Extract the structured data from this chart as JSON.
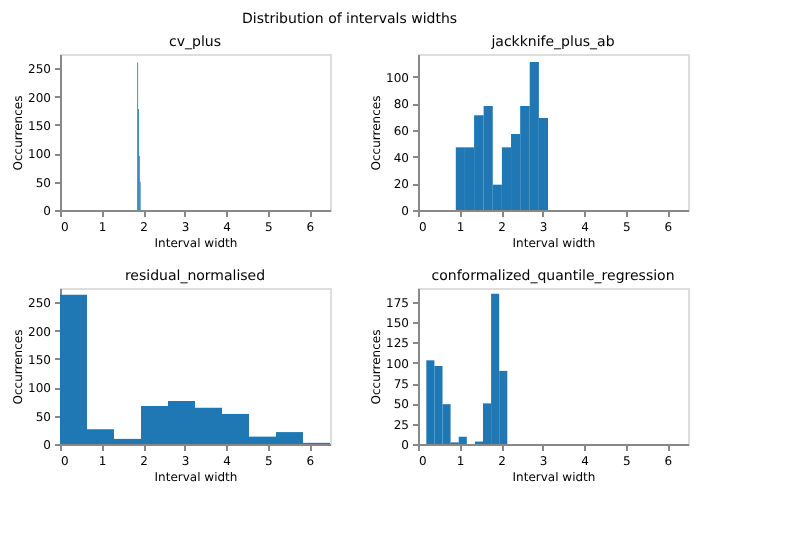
{
  "chart_data": [
    {
      "type": "histogram",
      "title": "cv_plus",
      "xlabel": "Interval width",
      "ylabel": "Occurrences",
      "annotations": [
        "Distribution of intervals widths"
      ],
      "color": "#1f77b4",
      "bins": [
        1.86,
        1.88,
        1.9,
        1.92,
        1.94,
        1.96
      ],
      "values": [
        260,
        178,
        95,
        50,
        null
      ],
      "xlim": [
        0,
        6.5
      ],
      "xticks": [
        0,
        1,
        2,
        3,
        4,
        5,
        6
      ],
      "ylim": [
        0,
        275
      ],
      "yticks": [
        0,
        50,
        100,
        150,
        200,
        250
      ],
      "grid": false
    },
    {
      "type": "histogram",
      "title": "jackknife_plus_ab",
      "xlabel": "Interval width",
      "ylabel": "Occurrences",
      "color": "#1f77b4",
      "bins": [
        0.91,
        1.13,
        1.35,
        1.58,
        1.8,
        2.02,
        2.24,
        2.46,
        2.69,
        2.91,
        3.13
      ],
      "values": [
        47,
        47,
        71,
        78,
        19,
        47,
        57,
        78,
        111,
        69
      ],
      "xlim": [
        0,
        6.5
      ],
      "xticks": [
        0,
        1,
        2,
        3,
        4,
        5,
        6
      ],
      "ylim": [
        0,
        117
      ],
      "yticks": [
        0,
        20,
        40,
        60,
        80,
        100
      ],
      "grid": false
    },
    {
      "type": "histogram",
      "title": "residual_normalised",
      "xlabel": "Interval width",
      "ylabel": "Occurrences",
      "color": "#1f77b4",
      "bins": [
        0,
        0.65,
        1.3,
        1.95,
        2.6,
        3.25,
        3.9,
        4.55,
        5.2,
        5.85,
        6.5
      ],
      "values": [
        263,
        26,
        9,
        67,
        76,
        64,
        53,
        13,
        21,
        2
      ],
      "xlim": [
        0,
        6.5
      ],
      "xticks": [
        0,
        1,
        2,
        3,
        4,
        5,
        6
      ],
      "ylim": [
        0,
        275
      ],
      "yticks": [
        0,
        50,
        100,
        150,
        200,
        250
      ],
      "grid": false
    },
    {
      "type": "histogram",
      "title": "conformalized_quantile_regression",
      "xlabel": "Interval width",
      "ylabel": "Occurrences",
      "color": "#1f77b4",
      "bins": [
        0.2,
        0.395,
        0.59,
        0.785,
        0.98,
        1.175,
        1.37,
        1.565,
        1.76,
        1.955,
        2.15
      ],
      "values": [
        103,
        96,
        49,
        2,
        9,
        0,
        3,
        50,
        185,
        90
      ],
      "xlim": [
        0,
        6.5
      ],
      "xticks": [
        0,
        1,
        2,
        3,
        4,
        5,
        6
      ],
      "ylim": [
        0,
        192
      ],
      "yticks": [
        0,
        25,
        50,
        75,
        100,
        125,
        150,
        175
      ],
      "grid": false
    }
  ]
}
